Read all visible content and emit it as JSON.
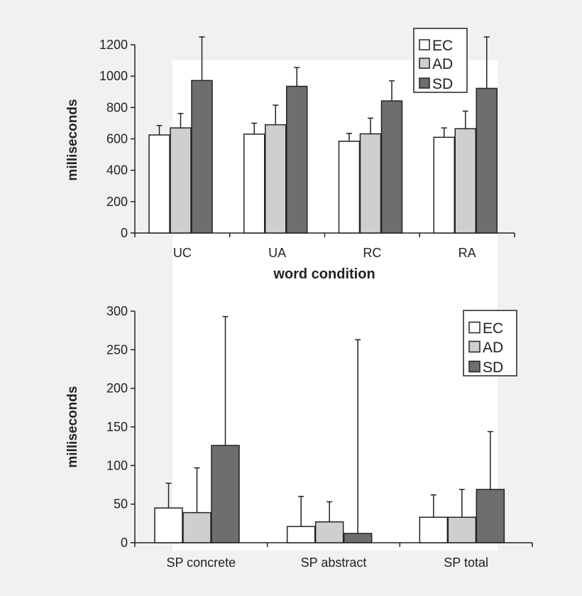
{
  "chart_data": [
    {
      "type": "bar",
      "title": "",
      "xlabel": "word condition",
      "ylabel": "milliseconds",
      "ylim": [
        0,
        1200
      ],
      "yticks": [
        0,
        200,
        400,
        600,
        800,
        1000,
        1200
      ],
      "categories": [
        "UC",
        "UA",
        "RC",
        "RA"
      ],
      "legend_position": "top-right",
      "grid": false,
      "series": [
        {
          "name": "EC",
          "color": "#ffffff",
          "values": [
            625,
            630,
            585,
            610
          ],
          "error": [
            60,
            70,
            50,
            60
          ]
        },
        {
          "name": "AD",
          "color": "#cfcfcf",
          "values": [
            670,
            690,
            632,
            665
          ],
          "error": [
            92,
            125,
            100,
            112
          ]
        },
        {
          "name": "SD",
          "color": "#6e6e6e",
          "values": [
            972,
            935,
            842,
            922
          ],
          "error": [
            278,
            120,
            128,
            328
          ]
        }
      ]
    },
    {
      "type": "bar",
      "title": "",
      "xlabel": "",
      "ylabel": "milliseconds",
      "ylim": [
        0,
        300
      ],
      "yticks": [
        0,
        50,
        100,
        150,
        200,
        250,
        300
      ],
      "categories": [
        "SP concrete",
        "SP abstract",
        "SP total"
      ],
      "legend_position": "top-right",
      "grid": false,
      "series": [
        {
          "name": "EC",
          "color": "#ffffff",
          "values": [
            45,
            21,
            33
          ],
          "error": [
            32,
            39,
            29
          ]
        },
        {
          "name": "AD",
          "color": "#cfcfcf",
          "values": [
            39,
            27,
            33
          ],
          "error": [
            58,
            26,
            36
          ]
        },
        {
          "name": "SD",
          "color": "#6e6e6e",
          "values": [
            126,
            12,
            69
          ],
          "error": [
            167,
            251,
            75
          ]
        }
      ]
    }
  ]
}
